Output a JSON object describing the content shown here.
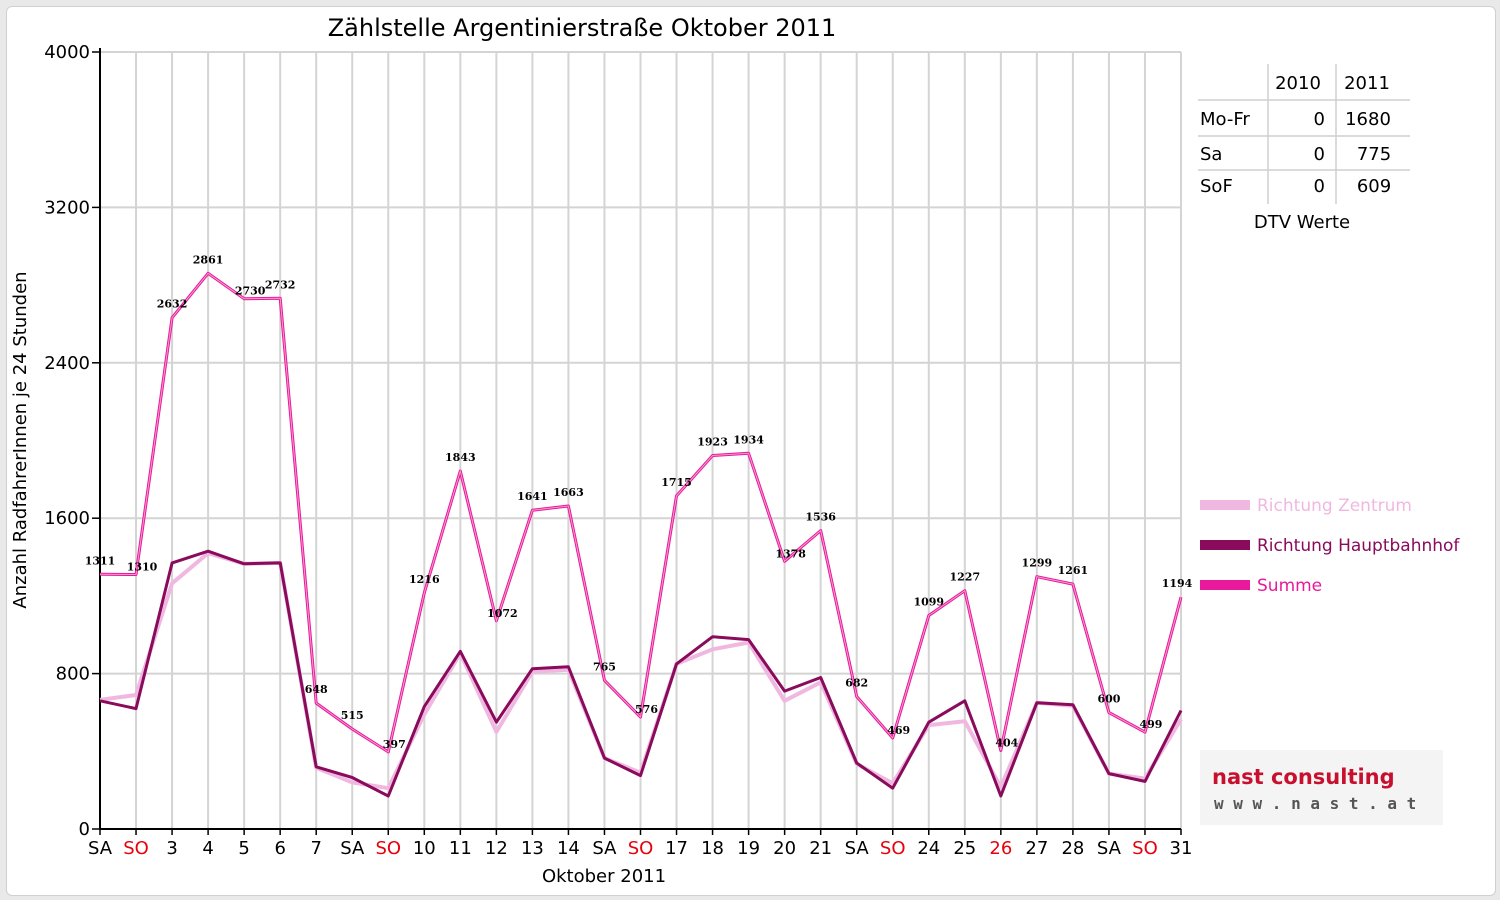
{
  "chart_data": {
    "type": "line",
    "title": "Zählstelle Argentinierstraße Oktober 2011",
    "xlabel": "Oktober 2011",
    "ylabel": "Anzahl RadfahrerInnen je 24 Stunden",
    "ylim": [
      0,
      4000
    ],
    "yticks": [
      "0",
      "800",
      "1600",
      "2400",
      "3200",
      "4000"
    ],
    "grid": true,
    "legend_position": "right",
    "categories": [
      "SA",
      "SO",
      "3",
      "4",
      "5",
      "6",
      "7",
      "SA",
      "SO",
      "10",
      "11",
      "12",
      "13",
      "14",
      "SA",
      "SO",
      "17",
      "18",
      "19",
      "20",
      "21",
      "SA",
      "SO",
      "24",
      "25",
      "26",
      "27",
      "28",
      "SA",
      "SO",
      "31"
    ],
    "highlight_categories": [
      1,
      8,
      15,
      22,
      25,
      29
    ],
    "series": [
      {
        "name": "Richtung Zentrum",
        "color": "#f0b8e0",
        "values": [
          665,
          690,
          1265,
          1420,
          1365,
          1370,
          315,
          240,
          210,
          590,
          905,
          500,
          810,
          820,
          365,
          290,
          850,
          925,
          960,
          660,
          755,
          335,
          235,
          535,
          555,
          215,
          650,
          635,
          285,
          260,
          565
        ]
      },
      {
        "name": "Richtung Hauptbahnhof",
        "color": "#8a0a5c",
        "values": [
          660,
          620,
          1370,
          1430,
          1365,
          1370,
          320,
          265,
          170,
          630,
          915,
          550,
          825,
          835,
          365,
          275,
          850,
          990,
          975,
          710,
          780,
          340,
          210,
          550,
          660,
          170,
          650,
          640,
          285,
          245,
          610
        ]
      },
      {
        "name": "Summe",
        "color": "#e8199b",
        "values": [
          1311,
          1310,
          2632,
          2861,
          2730,
          2732,
          648,
          515,
          397,
          1216,
          1843,
          1072,
          1641,
          1663,
          765,
          576,
          1715,
          1923,
          1934,
          1378,
          1536,
          682,
          469,
          1099,
          1227,
          404,
          1299,
          1261,
          600,
          499,
          1194
        ]
      }
    ]
  },
  "table": {
    "headers": [
      "",
      "2010",
      "2011"
    ],
    "rows": [
      {
        "label": "Mo-Fr",
        "v2010": "0",
        "v2011": "1680"
      },
      {
        "label": "Sa",
        "v2010": "0",
        "v2011": "775"
      },
      {
        "label": "SoF",
        "v2010": "0",
        "v2011": "609"
      }
    ],
    "caption": "DTV Werte"
  },
  "logo": {
    "name": "nast consulting",
    "url": "w w w . n a s t . a t"
  },
  "colors": {
    "highlight_tick": "#e8000b",
    "grid": "#d4d4d4",
    "logo_red": "#c8102e",
    "logo_gray": "#555555"
  }
}
